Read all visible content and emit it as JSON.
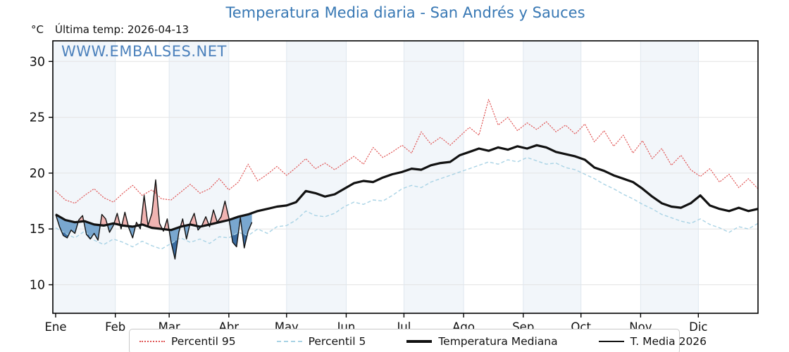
{
  "header": {
    "title": "Temperatura Media diaria - San Andrés y Sauces",
    "y_axis_unit": "°C",
    "last_temp": "Última temp: 2026-04-13"
  },
  "watermark": "WWW.EMBALSES.NET",
  "colors": {
    "title": "#3878b4",
    "watermark": "#3e78b7",
    "band": "#f2f6fa",
    "grid_h": "#e4e4e4",
    "grid_v": "#dfe7ef",
    "spine": "#000000",
    "p95": "#e05555",
    "p5": "#a9d3e5",
    "median": "#111111",
    "t2026": "#111111",
    "fill_above": "#f1b4b2",
    "fill_below": "#79a7cf",
    "fill_above_p95": "#d98b89",
    "fill_below_p5": "#3a6b9f",
    "tick_label": "#111111",
    "legend_border": "#c9c9c9"
  },
  "chart_data": {
    "type": "line",
    "title": "Temperatura Media diaria - San Andrés y Sauces",
    "xlabel": "",
    "ylabel": "°C",
    "ylim": [
      7.5,
      31.9
    ],
    "y_ticks": [
      10,
      15,
      20,
      25,
      30
    ],
    "x_tick_labels": [
      "Ene",
      "Feb",
      "Mar",
      "Abr",
      "May",
      "Jun",
      "Jul",
      "Ago",
      "Sep",
      "Oct",
      "Nov",
      "Dic"
    ],
    "month_start_days": [
      0,
      31,
      59,
      90,
      120,
      151,
      181,
      212,
      243,
      273,
      304,
      334
    ],
    "days_per_year": 365,
    "grid": true,
    "legend_position": "bottom",
    "last_date": "2026-04-13",
    "series": [
      {
        "name": "Percentil 95",
        "style": "dotted",
        "start_day": 0,
        "day_step": 5,
        "values": [
          18.4,
          17.6,
          17.3,
          18.0,
          18.6,
          17.8,
          17.4,
          18.2,
          18.9,
          18.0,
          18.5,
          17.7,
          17.6,
          18.3,
          19.0,
          18.2,
          18.6,
          19.5,
          18.5,
          19.2,
          20.8,
          19.3,
          19.9,
          20.6,
          19.8,
          20.5,
          21.3,
          20.4,
          20.9,
          20.3,
          20.9,
          21.5,
          20.8,
          22.3,
          21.4,
          21.9,
          22.5,
          21.8,
          23.7,
          22.6,
          23.2,
          22.5,
          23.3,
          24.1,
          23.4,
          26.6,
          24.3,
          25.0,
          23.8,
          24.5,
          23.9,
          24.6,
          23.7,
          24.3,
          23.5,
          24.4,
          22.8,
          23.8,
          22.4,
          23.4,
          21.8,
          22.9,
          21.3,
          22.2,
          20.7,
          21.6,
          20.3,
          19.7,
          20.4,
          19.2,
          19.9,
          18.7,
          19.5,
          18.6
        ]
      },
      {
        "name": "Percentil 5",
        "style": "dashed",
        "start_day": 0,
        "day_step": 5,
        "values": [
          15.1,
          14.6,
          14.2,
          14.8,
          14.0,
          13.6,
          14.1,
          13.8,
          13.4,
          13.9,
          13.5,
          13.2,
          13.7,
          14.2,
          13.8,
          14.1,
          13.7,
          14.3,
          14.2,
          14.7,
          14.4,
          15.0,
          14.6,
          15.2,
          15.3,
          15.8,
          16.6,
          16.2,
          16.1,
          16.4,
          17.0,
          17.4,
          17.2,
          17.6,
          17.5,
          18.0,
          18.6,
          18.9,
          18.7,
          19.2,
          19.5,
          19.8,
          20.1,
          20.4,
          20.7,
          21.0,
          20.8,
          21.2,
          21.0,
          21.4,
          21.1,
          20.8,
          20.9,
          20.5,
          20.3,
          19.9,
          19.5,
          19.0,
          18.6,
          18.1,
          17.7,
          17.2,
          16.8,
          16.3,
          16.0,
          15.7,
          15.5,
          15.9,
          15.4,
          15.1,
          14.7,
          15.2,
          15.0,
          15.5
        ]
      },
      {
        "name": "Temperatura Mediana",
        "style": "solid-thick",
        "start_day": 0,
        "day_step": 5,
        "values": [
          16.3,
          15.8,
          15.6,
          15.7,
          15.4,
          15.3,
          15.5,
          15.3,
          15.2,
          15.4,
          15.1,
          15.0,
          14.9,
          15.2,
          15.4,
          15.2,
          15.4,
          15.6,
          15.8,
          16.1,
          16.3,
          16.6,
          16.8,
          17.0,
          17.1,
          17.4,
          18.4,
          18.2,
          17.9,
          18.1,
          18.6,
          19.1,
          19.3,
          19.2,
          19.6,
          19.9,
          20.1,
          20.4,
          20.3,
          20.7,
          20.9,
          21.0,
          21.6,
          21.9,
          22.2,
          22.0,
          22.3,
          22.1,
          22.4,
          22.2,
          22.5,
          22.3,
          21.9,
          21.7,
          21.5,
          21.2,
          20.5,
          20.2,
          19.8,
          19.5,
          19.2,
          18.6,
          17.9,
          17.3,
          17.0,
          16.9,
          17.3,
          18.0,
          17.1,
          16.8,
          16.6,
          16.9,
          16.6,
          16.8
        ]
      },
      {
        "name": "T. Media 2026",
        "style": "solid-thin",
        "start_day": 0,
        "day_step": 2,
        "values": [
          16.3,
          15.2,
          14.4,
          14.2,
          14.9,
          14.6,
          15.8,
          16.2,
          14.5,
          14.1,
          14.6,
          14.0,
          16.3,
          15.9,
          14.7,
          15.3,
          16.4,
          15.0,
          16.5,
          15.1,
          14.2,
          15.6,
          15.0,
          18.0,
          15.3,
          16.4,
          19.4,
          15.5,
          14.8,
          15.9,
          13.8,
          12.3,
          14.7,
          15.9,
          14.1,
          15.6,
          16.4,
          14.9,
          15.3,
          16.1,
          15.2,
          16.7,
          15.6,
          16.1,
          17.5,
          16.0,
          13.8,
          13.4,
          16.0,
          13.3,
          14.8,
          15.6
        ]
      }
    ]
  }
}
